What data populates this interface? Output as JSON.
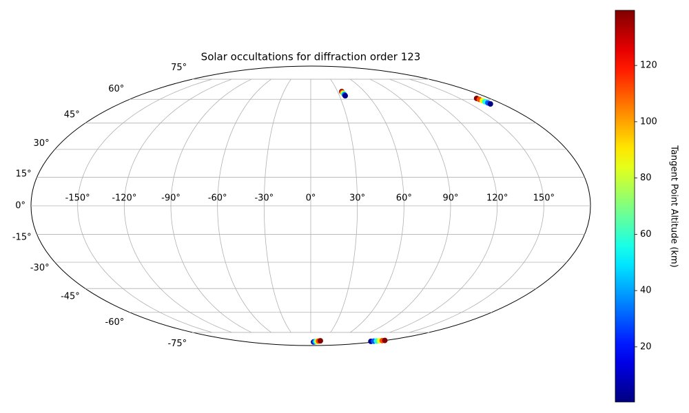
{
  "chart_data": {
    "type": "scatter",
    "projection": "mollweide",
    "title": "Solar occultations for diffraction order 123",
    "xlim": [
      -180,
      180
    ],
    "ylim": [
      -90,
      90
    ],
    "xticks": [
      {
        "value": -150,
        "label": "-150°"
      },
      {
        "value": -120,
        "label": "-120°"
      },
      {
        "value": -90,
        "label": "-90°"
      },
      {
        "value": -60,
        "label": "-60°"
      },
      {
        "value": -30,
        "label": "-30°"
      },
      {
        "value": 0,
        "label": "0°"
      },
      {
        "value": 30,
        "label": "30°"
      },
      {
        "value": 60,
        "label": "60°"
      },
      {
        "value": 90,
        "label": "90°"
      },
      {
        "value": 120,
        "label": "120°"
      },
      {
        "value": 150,
        "label": "150°"
      }
    ],
    "yticks": [
      {
        "value": -75,
        "label": "-75°"
      },
      {
        "value": -60,
        "label": "-60°"
      },
      {
        "value": -45,
        "label": "-45°"
      },
      {
        "value": -30,
        "label": "-30°"
      },
      {
        "value": -15,
        "label": "-15°"
      },
      {
        "value": 0,
        "label": "0°"
      },
      {
        "value": 15,
        "label": "15°"
      },
      {
        "value": 30,
        "label": "30°"
      },
      {
        "value": 45,
        "label": "45°"
      },
      {
        "value": 60,
        "label": "60°"
      },
      {
        "value": 75,
        "label": "75°"
      }
    ],
    "grid": true,
    "cmap": "jet",
    "colorbar_label": "Tangent Point Altitude (km)",
    "clim": [
      0.4,
      139.6
    ],
    "cticks": [
      20,
      40,
      60,
      80,
      100,
      120
    ],
    "x": [
      34.7,
      34.9,
      35.2,
      35.5,
      35.8,
      36.0,
      166.9,
      167.3,
      167.7,
      168.1,
      168.5,
      168.9,
      8,
      11,
      14,
      17,
      20,
      24,
      159,
      163,
      167,
      171,
      175,
      178
    ],
    "y": [
      65.4,
      64.8,
      64.2,
      63.6,
      63.0,
      62.4,
      60.6,
      59.9,
      59.1,
      58.4,
      57.6,
      56.9,
      -84.3,
      -84.1,
      -83.8,
      -83.6,
      -83.3,
      -83.0,
      -83.6,
      -83.4,
      -83.2,
      -83.0,
      -82.8,
      -82.6
    ],
    "c": [
      139,
      112,
      85,
      57,
      30,
      2,
      139,
      112,
      85,
      57,
      30,
      2,
      2,
      30,
      57,
      85,
      112,
      139,
      2,
      30,
      57,
      85,
      112,
      139
    ]
  }
}
